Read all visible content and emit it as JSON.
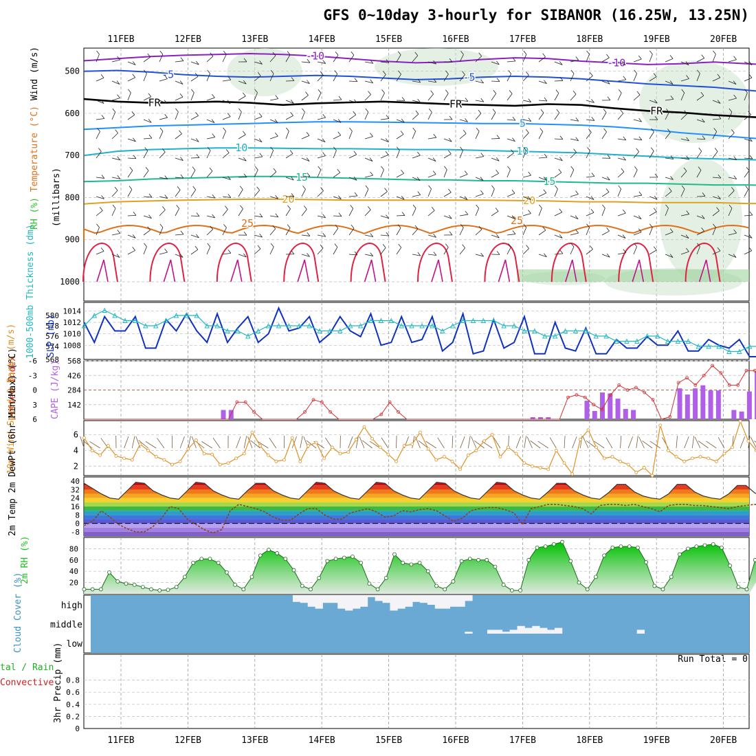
{
  "title": "GFS 0~10day 3-hourly for SIBANOR (16.25W, 13.25N)",
  "run_total_label": "Run Total = 0",
  "colors": {
    "rh_green": "#2fc02f",
    "temp_series": [
      "#8a1fc4",
      "#2050d8",
      "#000000",
      "#1e90ff",
      "#20b0c8",
      "#20b890",
      "#e0a020",
      "#e07018",
      "#e02040",
      "#c0108a"
    ],
    "slp": "#1030c0",
    "thickness": "#20b8c0",
    "lifted_index": "#d03030",
    "cape": "#b060e8",
    "wind": "#e09020",
    "barb": "#7a5a3a",
    "dewpoint": "#8b4513",
    "rh2m": "#20c020",
    "cloud_bg": "#6aa9d4",
    "cloud_fill": "#f4f4f8"
  },
  "chart_data": [
    {
      "type": "line",
      "panel": "upper-air",
      "ylabel_parts": [
        "RH (%)",
        "Temperature (°C)",
        "Wind (m/s)"
      ],
      "ylabel2": "(millibars)",
      "x_ticks": [
        "11FEB",
        "12FEB",
        "13FEB",
        "14FEB",
        "15FEB",
        "16FEB",
        "17FEB",
        "18FEB",
        "19FEB",
        "20FEB"
      ],
      "y_ticks": [
        500,
        600,
        700,
        800,
        900,
        1000
      ],
      "ylim": [
        445,
        1000
      ],
      "isotherms": [
        {
          "name": "-10",
          "label_days": [
            2.9,
            7.4
          ],
          "values": [
            475,
            470,
            465,
            462,
            460,
            458,
            460,
            464,
            470,
            476,
            480,
            478,
            472,
            468,
            470,
            476,
            480,
            484,
            482,
            478,
            482,
            486
          ]
        },
        {
          "name": "-5",
          "label_days": [
            0.7,
            5.2
          ],
          "values": [
            500,
            498,
            502,
            508,
            512,
            514,
            512,
            510,
            512,
            516,
            520,
            518,
            514,
            512,
            514,
            518,
            524,
            530,
            534,
            538,
            545,
            552
          ]
        },
        {
          "name": "FR",
          "label_days": [
            0.5,
            5.0,
            8.0
          ],
          "values": [
            566,
            572,
            575,
            574,
            572,
            575,
            580,
            576,
            574,
            572,
            575,
            578,
            580,
            582,
            578,
            580,
            588,
            594,
            598,
            604,
            608,
            612
          ]
        },
        {
          "name": "5",
          "label_days": [
            6.0
          ],
          "values": [
            638,
            634,
            630,
            628,
            626,
            624,
            622,
            620,
            620,
            621,
            622,
            623,
            624,
            624,
            626,
            628,
            632,
            638,
            646,
            652,
            658,
            664
          ]
        },
        {
          "name": "10",
          "label_days": [
            1.8,
            6.0
          ],
          "values": [
            700,
            690,
            686,
            684,
            682,
            682,
            683,
            684,
            684,
            685,
            686,
            686,
            688,
            690,
            692,
            694,
            698,
            702,
            706,
            708,
            710,
            712
          ]
        },
        {
          "name": "15",
          "label_days": [
            2.7,
            6.4
          ],
          "values": [
            762,
            760,
            756,
            754,
            752,
            750,
            750,
            752,
            754,
            756,
            758,
            758,
            760,
            760,
            762,
            764,
            766,
            766,
            768,
            770,
            770,
            772
          ]
        },
        {
          "name": "20",
          "label_days": [
            2.5,
            6.1
          ],
          "values": [
            815,
            810,
            808,
            806,
            805,
            804,
            804,
            805,
            806,
            806,
            806,
            806,
            806,
            807,
            808,
            810,
            810,
            812,
            812,
            812,
            814,
            814
          ]
        }
      ]
    },
    {
      "type": "line",
      "panel": "slp-thickness",
      "ylabel_left": "1000-500mb Thickness (dm)",
      "ylabel_right": "SLP (mb)",
      "slp_ticks": [
        1008,
        1010,
        1012,
        1014
      ],
      "thickness_ticks": [
        568,
        574,
        576,
        578,
        580
      ],
      "slp_range": [
        1006,
        1015
      ],
      "thickness_range": [
        572,
        582
      ],
      "series": [
        {
          "name": "SLP",
          "values": [
            1012,
            1008.5,
            1013,
            1010.5,
            1010.5,
            1013,
            1007.5,
            1007.5,
            1012.5,
            1010.5,
            1013.5,
            1010.5,
            1008.5,
            1013.5,
            1008.5,
            1011,
            1013,
            1008.5,
            1010,
            1014.5,
            1010.5,
            1011,
            1013,
            1008.5,
            1010,
            1013,
            1010.5,
            1009.5,
            1013.5,
            1008,
            1008.5,
            1013,
            1008.5,
            1009,
            1013,
            1007,
            1008.5,
            1013.5,
            1006.5,
            1007,
            1012.5,
            1007.5,
            1008.5,
            1013,
            1006.5,
            1006.5,
            1012,
            1007.5,
            1007,
            1011,
            1006.5,
            1006.5,
            1009,
            1007.5,
            1007.5,
            1009.5,
            1008,
            1008,
            1010.5,
            1007,
            1007,
            1009,
            1008,
            1007.5,
            1009,
            1006,
            1006,
            1008,
            1008
          ]
        },
        {
          "name": "Thickness",
          "values": [
            578,
            580,
            581,
            580,
            579,
            579,
            578,
            578,
            579,
            580,
            580,
            580,
            578,
            578,
            577,
            577,
            576,
            577,
            578,
            578,
            578,
            578,
            578,
            577,
            577,
            577,
            578,
            578,
            579,
            579,
            579,
            578,
            578,
            578,
            578,
            577,
            578,
            579,
            579,
            579,
            579,
            578,
            578,
            577,
            577,
            576,
            576,
            577,
            577,
            577,
            576,
            576,
            575,
            575,
            575,
            576,
            576,
            575,
            575,
            575,
            574,
            574,
            574,
            573,
            573,
            574,
            574,
            574,
            573
          ]
        }
      ]
    },
    {
      "type": "bar",
      "panel": "lifted-index-cape",
      "ylabel_left": "Lifted Index",
      "ylabel_right": "CAPE (J/kg)",
      "li_ticks": [
        -6,
        -3,
        0,
        3,
        6
      ],
      "li_range": [
        -6,
        6
      ],
      "cape_ticks": [
        142,
        284,
        426,
        568
      ],
      "cape_range": [
        0,
        568
      ],
      "lifted_index": [
        15,
        15,
        15,
        15,
        15,
        15,
        15,
        15,
        15,
        15,
        15,
        15,
        15,
        15,
        15,
        15,
        15,
        15,
        2.5,
        2.5,
        4.5,
        7,
        7,
        7.5,
        9.5,
        10.5,
        4.5,
        2,
        2.5,
        4.5,
        6.5,
        7.5,
        10,
        11,
        9.5,
        5,
        2.5,
        4.5,
        8,
        12,
        15,
        15,
        15,
        15,
        10,
        7,
        8,
        10,
        14,
        15,
        15,
        15,
        15,
        15,
        15,
        15,
        15,
        1.5,
        1,
        1.5,
        3,
        4,
        1,
        -1,
        0,
        -0.5,
        0.5,
        2,
        6.5,
        5.5,
        -1.5,
        -2.5,
        -1,
        -3,
        -5,
        -3.5,
        -1,
        -1,
        -4,
        -4,
        -1,
        -2,
        -2.5
      ],
      "cape": [
        0,
        0,
        0,
        0,
        0,
        0,
        0,
        0,
        0,
        0,
        0,
        0,
        0,
        0,
        0,
        0,
        0,
        0,
        90,
        90,
        0,
        0,
        0,
        0,
        0,
        0,
        0,
        0,
        0,
        0,
        0,
        0,
        0,
        0,
        0,
        0,
        0,
        0,
        0,
        0,
        0,
        0,
        0,
        0,
        0,
        0,
        0,
        0,
        0,
        0,
        0,
        0,
        0,
        0,
        0,
        0,
        0,
        0,
        20,
        20,
        20,
        0,
        0,
        0,
        0,
        180,
        80,
        260,
        250,
        200,
        100,
        90,
        0,
        0,
        0,
        0,
        0,
        300,
        240,
        300,
        330,
        280,
        280,
        0,
        90,
        75,
        270,
        470,
        530,
        500,
        460
      ]
    },
    {
      "type": "line",
      "panel": "10m-wind",
      "ylabel": "10m Wind Speed & Barbs (m/s)",
      "y_ticks": [
        2,
        4,
        6
      ],
      "ylim": [
        0.8,
        7.8
      ],
      "series": [
        {
          "name": "Speed",
          "values": [
            5.6,
            4.0,
            3.4,
            4.6,
            3.3,
            3.0,
            2.8,
            4.8,
            4.0,
            3.2,
            2.8,
            2.2,
            2.6,
            4.2,
            5.3,
            3.6,
            3.5,
            2.2,
            2.4,
            3.0,
            3.6,
            6.3,
            4.6,
            3.4,
            2.6,
            2.8,
            5.6,
            2.6,
            4.6,
            5.0,
            3.0,
            4.4,
            3.6,
            3.8,
            5.4,
            7.0,
            5.5,
            4.4,
            3.5,
            2.6,
            4.6,
            4.8,
            6.3,
            4.2,
            2.8,
            3.2,
            2.6,
            1.6,
            3.4,
            4.0,
            5.2,
            6.0,
            3.2,
            4.4,
            3.6,
            2.4,
            2.0,
            1.8,
            1.6,
            4.0,
            2.4,
            1.0,
            5.4,
            6.6,
            4.4,
            3.0,
            3.2,
            2.6,
            2.2,
            1.2,
            1.8,
            0.8,
            7.2,
            4.0,
            3.2,
            2.6,
            3.0,
            3.2,
            3.0,
            2.6,
            3.6,
            4.4,
            7.7,
            5.2,
            4.0,
            3.2,
            2.8,
            3.6
          ]
        }
      ]
    },
    {
      "type": "area",
      "panel": "2m-temp",
      "ylabel": "2m Temp 2m DewPt (6hr Min/Max) (°C)",
      "y_ticks": [
        -8,
        0,
        8,
        16,
        24,
        32,
        40
      ],
      "ylim": [
        -12,
        44
      ],
      "temp": [
        38,
        33,
        28,
        24,
        23,
        31,
        39,
        38,
        31,
        27,
        24,
        23,
        31,
        39,
        38,
        31,
        27,
        24,
        23,
        31,
        38,
        38,
        31,
        27,
        24,
        23,
        31,
        39,
        38,
        31,
        27,
        24,
        23,
        31,
        39,
        38,
        31,
        27,
        24,
        23,
        31,
        39,
        38,
        31,
        27,
        24,
        23,
        31,
        39,
        38,
        31,
        27,
        24,
        23,
        30,
        38,
        38,
        31,
        27,
        24,
        23,
        29,
        37,
        37,
        30,
        26,
        24,
        23,
        28,
        37,
        37,
        30,
        26,
        24,
        23,
        28,
        36,
        36,
        29,
        25,
        23,
        21
      ],
      "dewpoint": [
        -2,
        2,
        12,
        6,
        -1,
        -5,
        -8,
        -8,
        -3,
        5,
        16,
        14,
        4,
        -1,
        -6,
        -9,
        -6,
        12,
        18,
        16,
        14,
        11,
        6,
        3,
        3,
        9,
        14,
        14,
        8,
        4,
        4,
        10,
        12,
        14,
        11,
        6,
        7,
        12,
        11,
        13,
        14,
        12,
        7,
        2,
        5,
        12,
        14,
        15,
        15,
        13,
        10,
        -1,
        14,
        16,
        18,
        18,
        17,
        16,
        14,
        9,
        17,
        18,
        18,
        17,
        18,
        16,
        14,
        11,
        17,
        18,
        18,
        17,
        17,
        16,
        15,
        14,
        16,
        17,
        18,
        18,
        19,
        18
      ]
    },
    {
      "type": "area",
      "panel": "2m-rh",
      "ylabel": "2m RH (%)",
      "y_ticks": [
        20,
        40,
        60,
        80
      ],
      "ylim": [
        0,
        100
      ],
      "values": [
        8,
        8,
        8,
        38,
        22,
        18,
        16,
        12,
        8,
        6,
        7,
        12,
        30,
        55,
        62,
        62,
        55,
        38,
        16,
        8,
        30,
        68,
        78,
        72,
        62,
        42,
        14,
        8,
        28,
        58,
        62,
        64,
        66,
        55,
        18,
        8,
        28,
        70,
        55,
        52,
        55,
        40,
        14,
        8,
        22,
        58,
        62,
        60,
        60,
        48,
        16,
        6,
        6,
        60,
        82,
        84,
        88,
        92,
        58,
        20,
        8,
        30,
        68,
        82,
        84,
        84,
        82,
        56,
        14,
        8,
        30,
        70,
        80,
        84,
        86,
        88,
        82,
        50,
        12,
        8,
        60,
        80,
        88,
        92
      ]
    },
    {
      "type": "heatmap",
      "panel": "cloud-cover",
      "ylabel": "Cloud Cover (%)",
      "rows": [
        "high",
        "middle",
        "low"
      ],
      "high": [
        0,
        0,
        0,
        0,
        0,
        0,
        0,
        0,
        0,
        0,
        0,
        0,
        0,
        0,
        0,
        0,
        0,
        0,
        0,
        0,
        0,
        0,
        0,
        0,
        0,
        0,
        0,
        35,
        40,
        60,
        70,
        40,
        40,
        70,
        80,
        70,
        60,
        10,
        30,
        40,
        80,
        70,
        60,
        35,
        40,
        50,
        70,
        70,
        60,
        60,
        30,
        0,
        0,
        0,
        0,
        0,
        0,
        0,
        0,
        0,
        0,
        0,
        0,
        0,
        0,
        0,
        0,
        0,
        0,
        0,
        0,
        0,
        0,
        0,
        0,
        0,
        0,
        0,
        0,
        0,
        0,
        0,
        0,
        0,
        0,
        0,
        0,
        0
      ],
      "middle": [
        0,
        0,
        0,
        0,
        0,
        0,
        0,
        0,
        0,
        0,
        0,
        0,
        0,
        0,
        0,
        0,
        0,
        0,
        0,
        0,
        0,
        0,
        0,
        0,
        0,
        0,
        0,
        0,
        0,
        0,
        0,
        0,
        0,
        0,
        0,
        0,
        0,
        0,
        0,
        0,
        0,
        0,
        0,
        0,
        0,
        0,
        0,
        0,
        0,
        0,
        10,
        0,
        0,
        20,
        20,
        10,
        20,
        40,
        30,
        40,
        30,
        20,
        30,
        0,
        0,
        0,
        0,
        0,
        0,
        0,
        0,
        0,
        0,
        20,
        0,
        0,
        0,
        0,
        0,
        0,
        0,
        0,
        0,
        0,
        0,
        0,
        0,
        0,
        0,
        0
      ],
      "low": [
        0,
        0,
        0,
        0,
        0,
        0,
        0,
        0,
        0,
        0,
        0,
        0,
        0,
        0,
        0,
        0,
        0,
        0,
        0,
        0,
        0,
        0,
        0,
        0,
        0,
        0,
        0,
        0,
        0,
        0,
        0,
        0,
        0,
        0,
        0,
        0,
        0,
        0,
        0,
        0,
        0,
        0,
        0,
        0,
        0,
        0,
        0,
        0,
        0,
        0,
        0,
        0,
        0,
        0,
        0,
        0,
        0,
        0,
        0,
        0,
        0,
        0,
        0,
        0,
        0,
        0,
        0,
        0,
        0,
        0,
        0,
        0,
        0,
        0,
        0,
        0,
        0,
        0,
        0,
        0,
        0,
        0,
        0,
        0,
        0,
        0,
        0,
        0
      ]
    },
    {
      "type": "bar",
      "panel": "precip",
      "ylabel_left": "tal / Rain",
      "ylabel_left2": "Convective",
      "ylabel": "3hr Precip (mm)",
      "y_ticks": [
        0,
        0.2,
        0.4,
        0.6,
        0.8
      ],
      "ylim": [
        0,
        1
      ],
      "values": []
    }
  ]
}
